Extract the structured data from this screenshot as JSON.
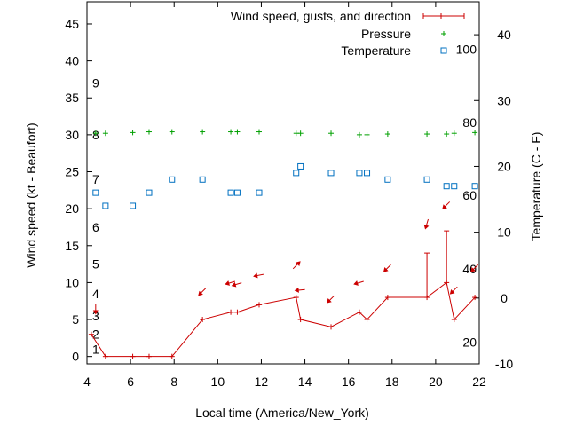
{
  "chart_data": {
    "type": "scatter",
    "xlabel": "Local time (America/New_York)",
    "ylabel": "Wind speed (kt - Beaufort)",
    "y2label": "Temperature (C - F)",
    "xlim": [
      4,
      22
    ],
    "ylim": [
      -1,
      48
    ],
    "y2lim": [
      -10,
      45
    ],
    "x_ticks": [
      4,
      6,
      8,
      10,
      12,
      14,
      16,
      18,
      20,
      22
    ],
    "y_ticks": [
      0,
      5,
      10,
      15,
      20,
      25,
      30,
      35,
      40,
      45
    ],
    "y2_ticks": [
      -10,
      0,
      10,
      20,
      30,
      40
    ],
    "fahrenheit_labels": [
      {
        "label": "20",
        "celsius": -6.7
      },
      {
        "label": "40",
        "celsius": 4.4
      },
      {
        "label": "60",
        "celsius": 15.6
      },
      {
        "label": "80",
        "celsius": 26.7
      },
      {
        "label": "100",
        "celsius": 37.8
      }
    ],
    "beaufort_labels": [
      {
        "label": "1",
        "kt": 1
      },
      {
        "label": "2",
        "kt": 3
      },
      {
        "label": "3",
        "kt": 5.5
      },
      {
        "label": "4",
        "kt": 8.5
      },
      {
        "label": "5",
        "kt": 12.5
      },
      {
        "label": "6",
        "kt": 17.5
      },
      {
        "label": "7",
        "kt": 24
      },
      {
        "label": "8",
        "kt": 30
      },
      {
        "label": "9",
        "kt": 37
      }
    ],
    "legend_placement": "top-right",
    "grid": false,
    "series": [
      {
        "name": "Wind speed, gusts, and direction",
        "color": "#cc0000",
        "x": [
          4.2,
          4.85,
          6.1,
          6.85,
          7.9,
          9.3,
          10.6,
          10.9,
          11.9,
          13.6,
          13.8,
          15.2,
          16.5,
          16.85,
          17.8,
          19.6,
          20.5,
          20.85,
          21.8
        ],
        "values": [
          3,
          0,
          0,
          0,
          0,
          5,
          6,
          6,
          7,
          8,
          5,
          4,
          6,
          5,
          8,
          8,
          10,
          5,
          8
        ],
        "gusts": [
          {
            "x": 19.6,
            "low": 8,
            "high": 14
          },
          {
            "x": 20.5,
            "low": 10,
            "high": 17
          }
        ],
        "direction_arrows": [
          {
            "x": 4.4,
            "y": 6.5,
            "dx": 0,
            "dy": 1
          },
          {
            "x": 9.3,
            "y": 8.8,
            "dx": -1,
            "dy": 1
          },
          {
            "x": 10.6,
            "y": 10,
            "dx": -1,
            "dy": 0.3
          },
          {
            "x": 10.9,
            "y": 9.8,
            "dx": -1,
            "dy": 0.3
          },
          {
            "x": 11.9,
            "y": 11,
            "dx": -1,
            "dy": 0.2
          },
          {
            "x": 13.6,
            "y": 12.3,
            "dx": 1,
            "dy": -1
          },
          {
            "x": 13.8,
            "y": 9,
            "dx": -1,
            "dy": 0.1
          },
          {
            "x": 15.2,
            "y": 7.8,
            "dx": -1,
            "dy": 1
          },
          {
            "x": 16.5,
            "y": 10,
            "dx": -1,
            "dy": 0.3
          },
          {
            "x": 17.8,
            "y": 12,
            "dx": -1,
            "dy": 1
          },
          {
            "x": 19.6,
            "y": 18,
            "dx": -0.3,
            "dy": 1
          },
          {
            "x": 20.5,
            "y": 20.5,
            "dx": -1,
            "dy": 1
          },
          {
            "x": 20.85,
            "y": 9,
            "dx": -1,
            "dy": 1
          },
          {
            "x": 21.8,
            "y": 12,
            "dx": -1,
            "dy": 1
          }
        ]
      },
      {
        "name": "Pressure",
        "color": "#00a000",
        "x": [
          4.4,
          4.85,
          6.1,
          6.85,
          7.9,
          9.3,
          10.6,
          10.9,
          11.9,
          13.6,
          13.8,
          15.2,
          16.5,
          16.85,
          17.8,
          19.6,
          20.5,
          20.85,
          21.8
        ],
        "values": [
          30.2,
          30.2,
          30.3,
          30.4,
          30.4,
          30.4,
          30.4,
          30.4,
          30.4,
          30.2,
          30.2,
          30.2,
          30,
          30,
          30.1,
          30.1,
          30.1,
          30.2,
          30.3
        ]
      },
      {
        "name": "Temperature",
        "color": "#0070c0",
        "x": [
          4.4,
          4.85,
          6.1,
          6.85,
          7.9,
          9.3,
          10.6,
          10.9,
          11.9,
          13.6,
          13.8,
          15.2,
          16.5,
          16.85,
          17.8,
          19.6,
          20.5,
          20.85,
          21.8
        ],
        "values": [
          16,
          14,
          14,
          16,
          18,
          18,
          16,
          16,
          16,
          19,
          20,
          19,
          19,
          19,
          18,
          18,
          17,
          17,
          17
        ]
      }
    ]
  }
}
